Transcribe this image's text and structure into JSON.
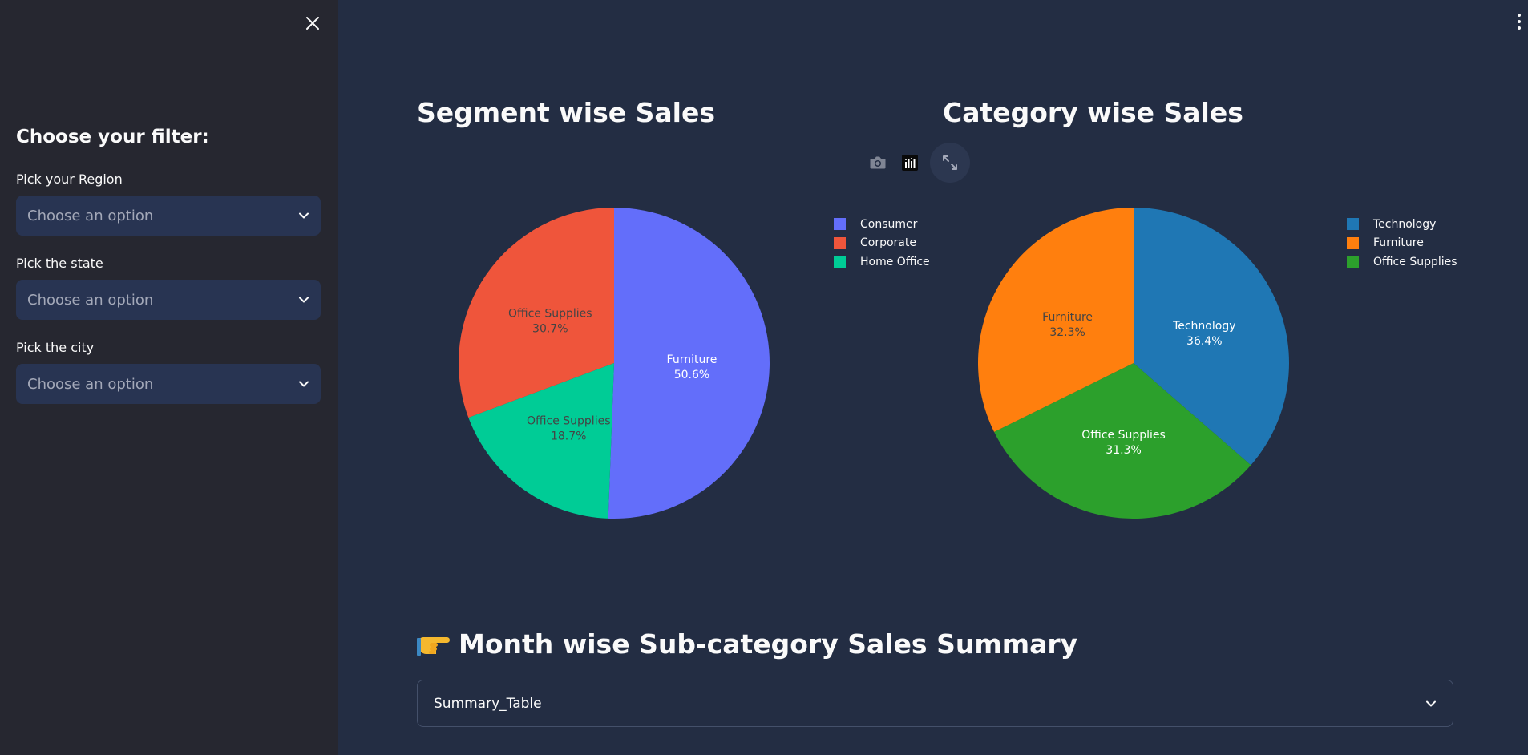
{
  "sidebar": {
    "heading": "Choose your filter:",
    "filters": [
      {
        "label": "Pick your Region",
        "placeholder": "Choose an option"
      },
      {
        "label": "Pick the state",
        "placeholder": "Choose an option"
      },
      {
        "label": "Pick the city",
        "placeholder": "Choose an option"
      }
    ]
  },
  "charts": {
    "segment": {
      "title": "Segment wise Sales",
      "legend": [
        "Consumer",
        "Corporate",
        "Home Office"
      ]
    },
    "category": {
      "title": "Category wise Sales",
      "legend": [
        "Technology",
        "Furniture",
        "Office Supplies"
      ]
    }
  },
  "summary": {
    "title": "Month wise Sub-category Sales Summary",
    "expander_label": "Summary_Table"
  },
  "chart_data": [
    {
      "type": "pie",
      "title": "Segment wise Sales",
      "legend": [
        "Consumer",
        "Corporate",
        "Home Office"
      ],
      "slices": [
        {
          "legend": "Consumer",
          "label": "Furniture",
          "value": 50.6,
          "text": "50.6%",
          "color": "#636efa",
          "text_color": "#ffffff"
        },
        {
          "legend": "Home Office",
          "label": "Office Supplies",
          "value": 18.7,
          "text": "18.7%",
          "color": "#00cc96",
          "text_color": "#444444"
        },
        {
          "legend": "Corporate",
          "label": "Office Supplies",
          "value": 30.7,
          "text": "30.7%",
          "color": "#ef553b",
          "text_color": "#444444"
        }
      ]
    },
    {
      "type": "pie",
      "title": "Category wise Sales",
      "legend": [
        "Technology",
        "Furniture",
        "Office Supplies"
      ],
      "slices": [
        {
          "legend": "Technology",
          "label": "Technology",
          "value": 36.4,
          "text": "36.4%",
          "color": "#1f77b4",
          "text_color": "#ffffff"
        },
        {
          "legend": "Office Supplies",
          "label": "Office Supplies",
          "value": 31.3,
          "text": "31.3%",
          "color": "#2ca02c",
          "text_color": "#ffffff"
        },
        {
          "legend": "Furniture",
          "label": "Furniture",
          "value": 32.3,
          "text": "32.3%",
          "color": "#ff7f0e",
          "text_color": "#444444"
        }
      ]
    }
  ],
  "colors": {
    "app_bg": "#232d43",
    "sidebar_bg": "#262730",
    "select_bg": "#283452",
    "legend": {
      "Consumer": "#636efa",
      "Corporate": "#ef553b",
      "Home Office": "#00cc96",
      "Technology": "#1f77b4",
      "Furniture": "#ff7f0e",
      "Office Supplies": "#2ca02c"
    }
  },
  "icons": [
    "close-icon",
    "chevron-down-icon",
    "kebab-menu-icon",
    "camera-icon",
    "plotly-logo-icon",
    "fullscreen-icon",
    "pointing-hand-icon"
  ]
}
